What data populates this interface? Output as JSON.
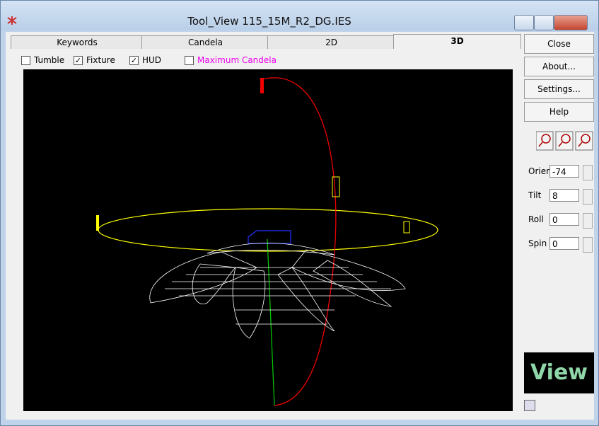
{
  "window": {
    "title": "Tool_View 115_15M_R2_DG.IES"
  },
  "tabs": [
    "Keywords",
    "Candela",
    "2D",
    "3D"
  ],
  "active_tab": 3,
  "options": [
    {
      "label": "Tumble",
      "checked": false
    },
    {
      "label": "Fixture",
      "checked": true
    },
    {
      "label": "HUD",
      "checked": true
    },
    {
      "label": "Maximum Candela",
      "checked": false
    }
  ],
  "buttons": [
    "Close",
    "About...",
    "Settings...",
    "Help"
  ],
  "fields": [
    {
      "label": "Orient",
      "value": -74
    },
    {
      "label": "Tilt",
      "value": 8
    },
    {
      "label": "Roll",
      "value": 0
    },
    {
      "label": "Spin",
      "value": 0
    }
  ],
  "logo": "View"
}
